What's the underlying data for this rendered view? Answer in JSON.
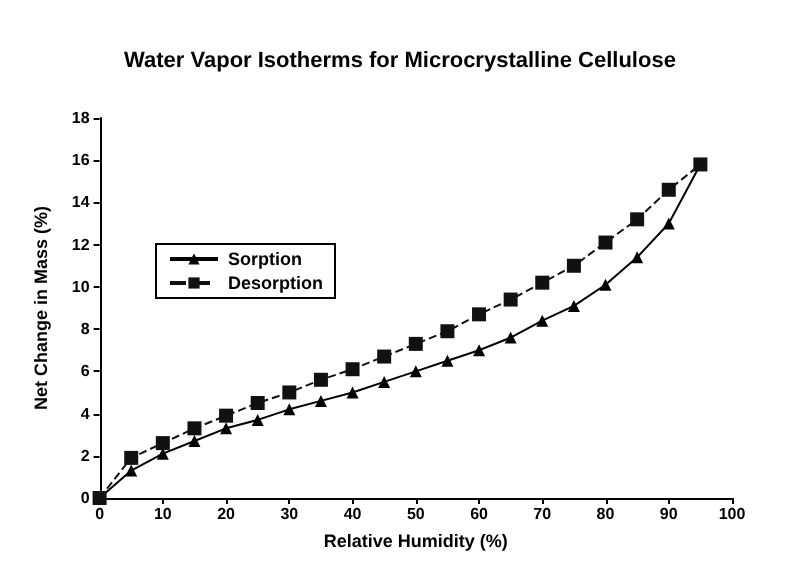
{
  "chart_data": {
    "type": "line",
    "title": "Water Vapor Isotherms for Microcrystalline Cellulose",
    "xlabel": "Relative Humidity (%)",
    "ylabel": "Net Change in Mass (%)",
    "x": [
      0,
      5,
      10,
      15,
      20,
      25,
      30,
      35,
      40,
      45,
      50,
      55,
      60,
      65,
      70,
      75,
      80,
      85,
      90,
      95
    ],
    "series": [
      {
        "name": "Sorption",
        "color": "#000000",
        "marker": "triangle",
        "line_style": "solid",
        "values": [
          0,
          1.3,
          2.1,
          2.7,
          3.3,
          3.7,
          4.2,
          4.6,
          5.0,
          5.5,
          6.0,
          6.5,
          7.0,
          7.6,
          8.4,
          9.1,
          10.1,
          11.4,
          13.0,
          15.8
        ]
      },
      {
        "name": "Desorption",
        "color": "#111111",
        "marker": "square",
        "line_style": "dashed",
        "values": [
          0,
          1.9,
          2.6,
          3.3,
          3.9,
          4.5,
          5.0,
          5.6,
          6.1,
          6.7,
          7.3,
          7.9,
          8.7,
          9.4,
          10.2,
          11.0,
          12.1,
          13.2,
          14.6,
          15.8
        ]
      }
    ],
    "xlim": [
      0,
      100
    ],
    "xticks": [
      0,
      10,
      20,
      30,
      40,
      50,
      60,
      70,
      80,
      90,
      100
    ],
    "ylim": [
      0,
      18
    ],
    "yticks": [
      0,
      2,
      4,
      6,
      8,
      10,
      12,
      14,
      16,
      18
    ],
    "grid": false,
    "legend": "top left"
  }
}
